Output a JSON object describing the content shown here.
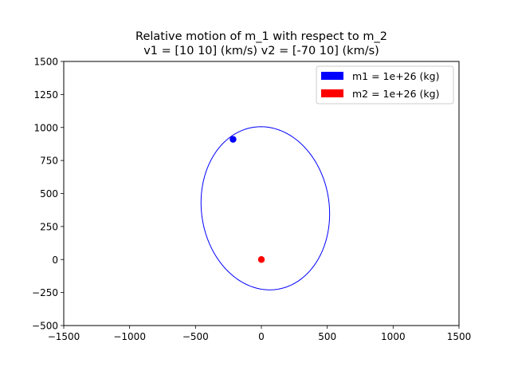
{
  "chart_data": {
    "type": "scatter",
    "title_line1": "Relative motion of m_1 with respect to m_2",
    "title_line2": "v1 = [10 10] (km/s) v2 = [-70  10] (km/s)",
    "xlabel": "",
    "ylabel": "",
    "xlim": [
      -1500,
      1500
    ],
    "ylim": [
      -500,
      1500
    ],
    "grid": false,
    "legend_position": "top-right",
    "x_ticks": [
      -1500,
      -1000,
      -500,
      0,
      500,
      1000,
      1500
    ],
    "x_tick_labels": [
      "−1500",
      "−1000",
      "−500",
      "0",
      "500",
      "1000",
      "1500"
    ],
    "y_ticks": [
      -500,
      -250,
      0,
      250,
      500,
      750,
      1000,
      1250,
      1500
    ],
    "y_tick_labels": [
      "−500",
      "−250",
      "0",
      "250",
      "500",
      "750",
      "1000",
      "1250",
      "1500"
    ],
    "orbit": {
      "color": "#0000ff",
      "center": [
        30,
        388
      ],
      "semi_axis_x": 485,
      "semi_axis_y": 620,
      "rotation_deg": 8
    },
    "series": [
      {
        "name": "m1 = 1e+26 (kg)",
        "color": "#0000ff",
        "points": [
          [
            -215,
            910
          ]
        ]
      },
      {
        "name": "m2 = 1e+26 (kg)",
        "color": "#ff0000",
        "points": [
          [
            0,
            0
          ]
        ]
      }
    ]
  }
}
